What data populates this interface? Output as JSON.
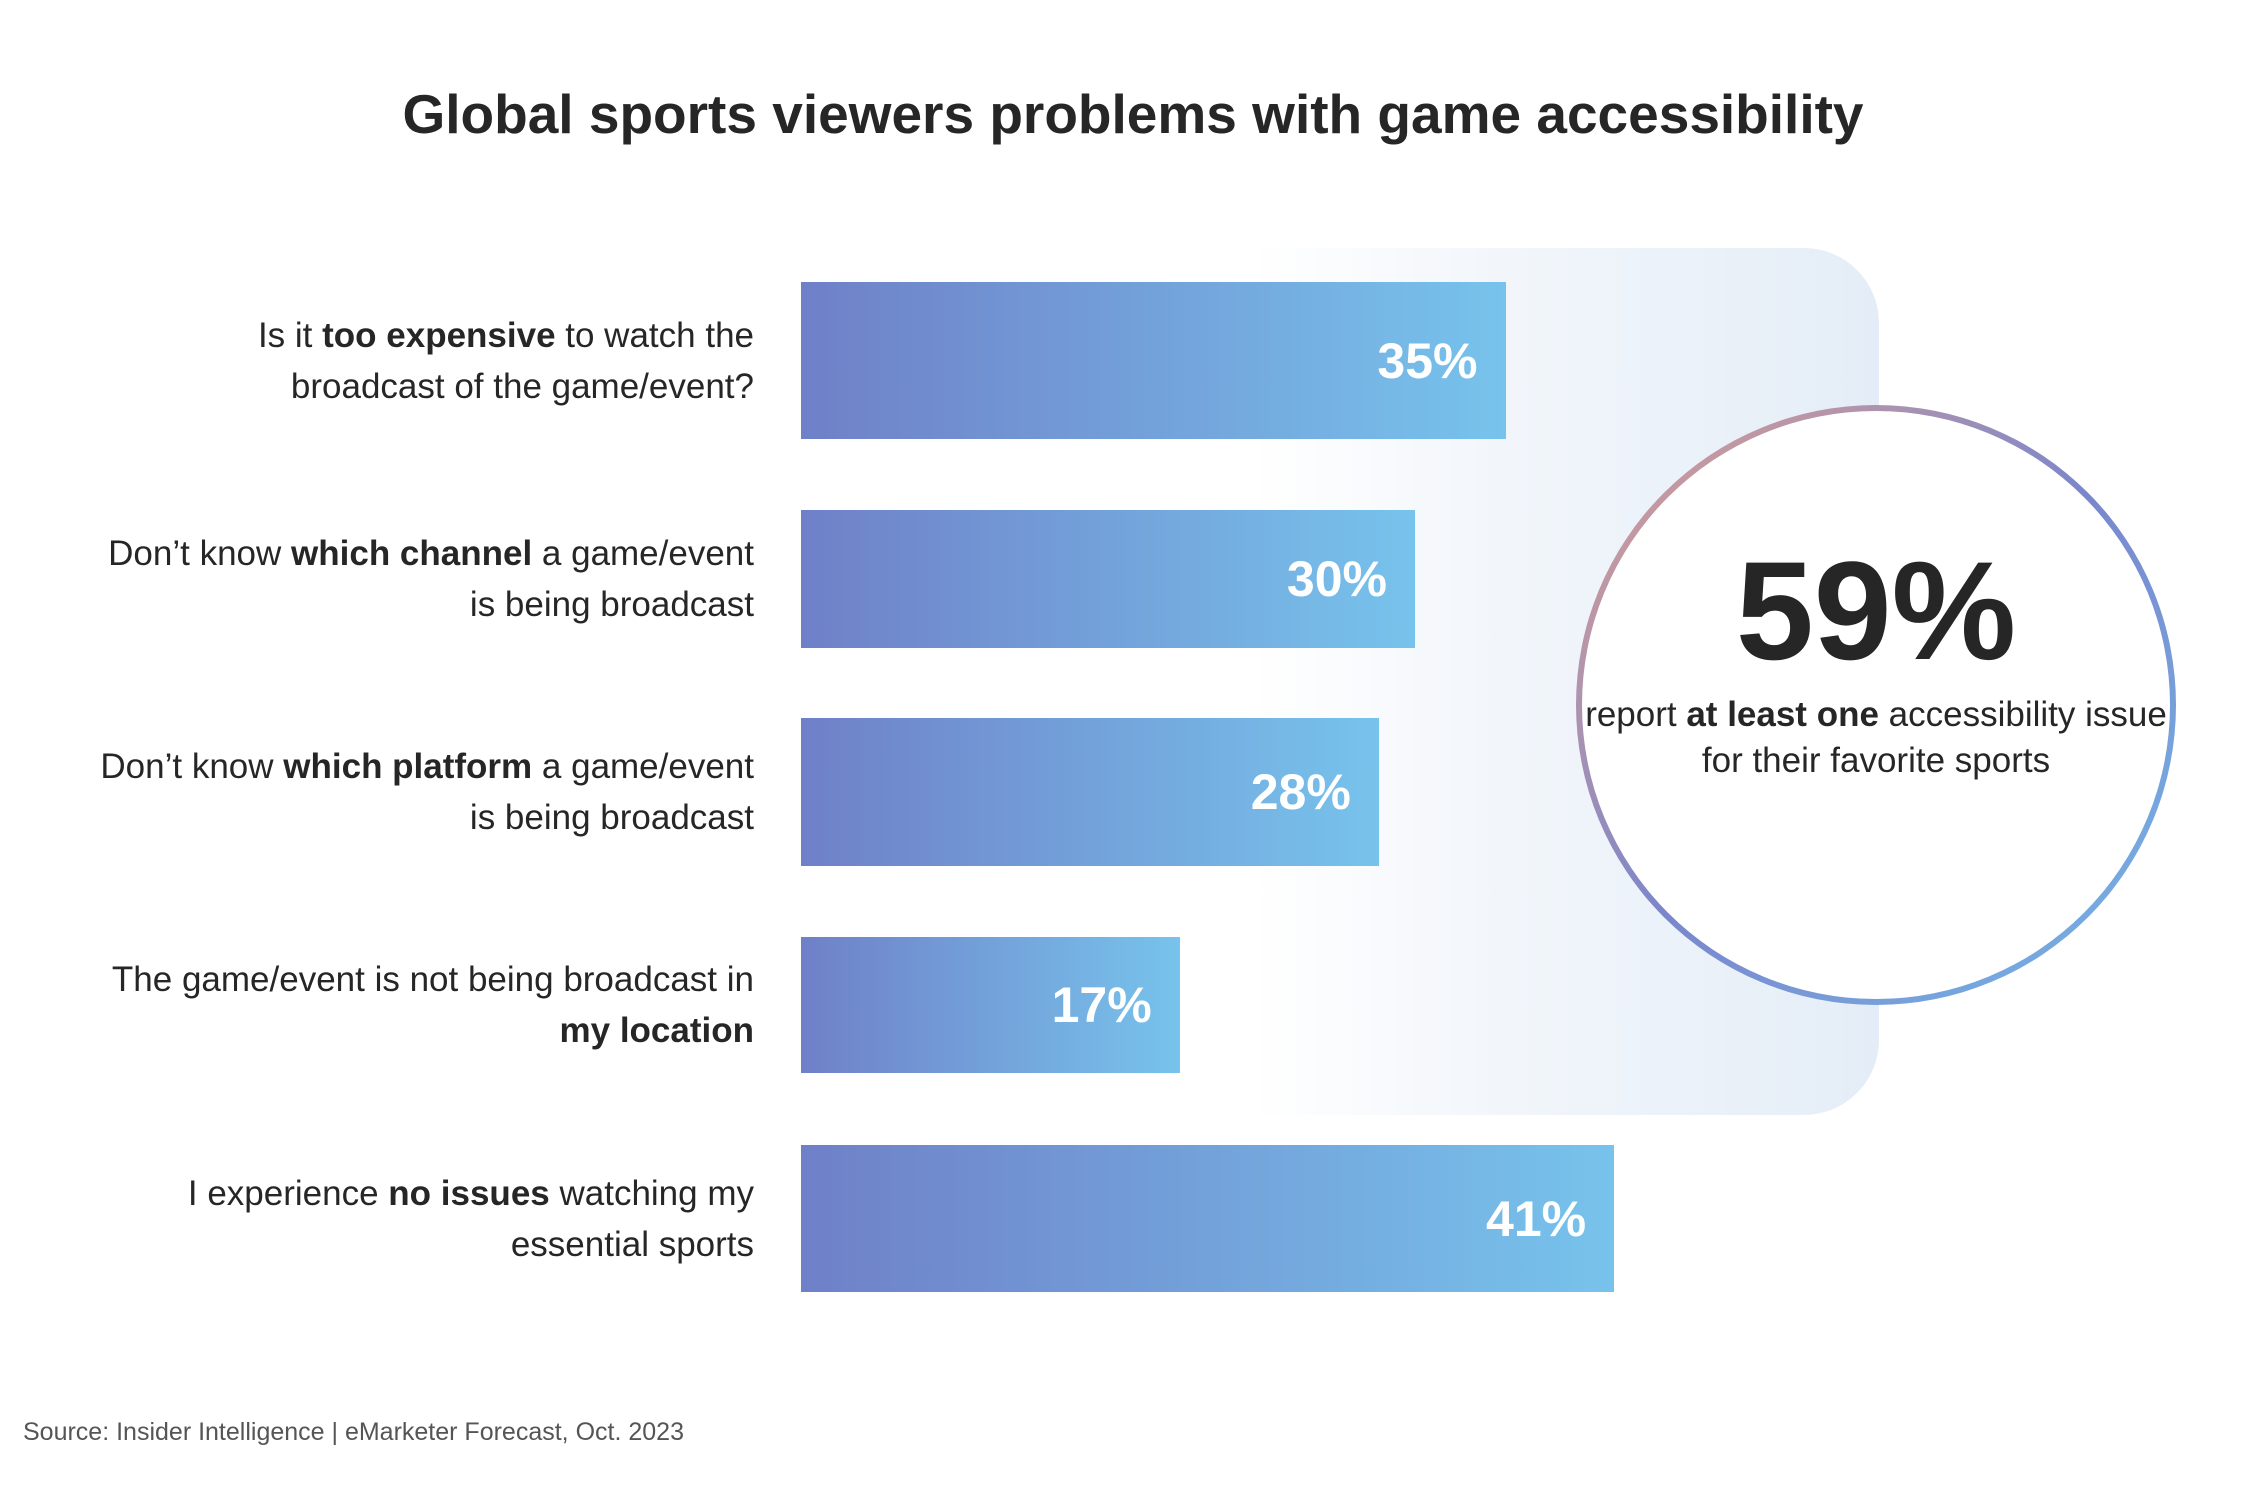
{
  "chart_data": {
    "type": "bar",
    "orientation": "horizontal",
    "title": "Global sports viewers problems with game accessibility",
    "categories": [
      {
        "pre": "Is it ",
        "bold": "too expensive",
        "post": " to watch the broadcast of the game/event?"
      },
      {
        "pre": "Don’t know ",
        "bold": "which channel",
        "post": " a game/event is being broadcast"
      },
      {
        "pre": "Don’t know ",
        "bold": "which platform",
        "post": " a game/event is being broadcast"
      },
      {
        "pre": "The game/event is not being broadcast in ",
        "bold": "my location",
        "post": ""
      },
      {
        "pre": "I experience ",
        "bold": "no issues",
        "post": " watching my essential sports"
      }
    ],
    "values": [
      35,
      30,
      28,
      17,
      41
    ],
    "value_labels": [
      "35%",
      "30%",
      "28%",
      "17%",
      "41%"
    ],
    "unit": "%",
    "grid": false,
    "colors": {
      "bar_start": "#6f80c8",
      "bar_end": "#77c3ec"
    }
  },
  "callout": {
    "value": "59%",
    "text_pre": "report ",
    "text_bold": "at least one",
    "text_post": " accessibility issue for their favorite sports"
  },
  "source": "Source: Insider Intelligence  |  eMarketer Forecast, Oct. 2023"
}
